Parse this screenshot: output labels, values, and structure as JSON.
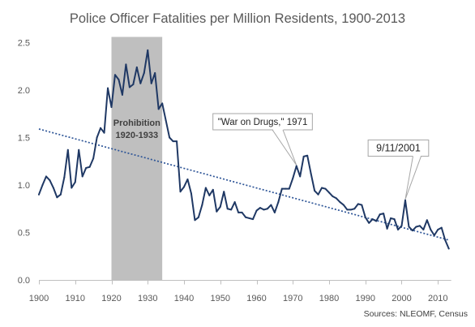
{
  "chart_data": {
    "type": "line",
    "title": "Police Officer Fatalities per Million Residents, 1900-2013",
    "xlabel": "",
    "ylabel": "",
    "source": "Sources: NLEOMF, Census",
    "xlim": [
      1900,
      2013
    ],
    "ylim": [
      0,
      2.5
    ],
    "x_ticks": [
      1900,
      1910,
      1920,
      1930,
      1940,
      1950,
      1960,
      1970,
      1980,
      1990,
      2000,
      2010
    ],
    "y_ticks": [
      0,
      0.5,
      1,
      1.5,
      2,
      2.5
    ],
    "y_tick_labels": [
      "0.0",
      "0.5",
      "1.0",
      "1.5",
      "2.0",
      "2.5"
    ],
    "grid": false,
    "legend": "none",
    "series": [
      {
        "color": "#1F3864",
        "x": [
          1900,
          1901,
          1902,
          1903,
          1904,
          1905,
          1906,
          1907,
          1908,
          1909,
          1910,
          1911,
          1912,
          1913,
          1914,
          1915,
          1916,
          1917,
          1918,
          1919,
          1920,
          1921,
          1922,
          1923,
          1924,
          1925,
          1926,
          1927,
          1928,
          1929,
          1930,
          1931,
          1932,
          1933,
          1934,
          1935,
          1936,
          1937,
          1938,
          1939,
          1940,
          1941,
          1942,
          1943,
          1944,
          1945,
          1946,
          1947,
          1948,
          1949,
          1950,
          1951,
          1952,
          1953,
          1954,
          1955,
          1956,
          1957,
          1958,
          1959,
          1960,
          1961,
          1962,
          1963,
          1964,
          1965,
          1966,
          1967,
          1968,
          1969,
          1970,
          1971,
          1972,
          1973,
          1974,
          1975,
          1976,
          1977,
          1978,
          1979,
          1980,
          1981,
          1982,
          1983,
          1984,
          1985,
          1986,
          1987,
          1988,
          1989,
          1990,
          1991,
          1992,
          1993,
          1994,
          1995,
          1996,
          1997,
          1998,
          1999,
          2000,
          2001,
          2002,
          2003,
          2004,
          2005,
          2006,
          2007,
          2008,
          2009,
          2010,
          2011,
          2012,
          2013
        ],
        "values": [
          0.9,
          1.0,
          1.09,
          1.05,
          0.97,
          0.87,
          0.9,
          1.08,
          1.37,
          0.97,
          1.03,
          1.37,
          1.09,
          1.18,
          1.19,
          1.28,
          1.5,
          1.6,
          1.55,
          2.02,
          1.82,
          2.16,
          2.11,
          1.95,
          2.27,
          2.03,
          2.06,
          2.24,
          2.07,
          2.18,
          2.42,
          2.07,
          2.18,
          1.8,
          1.86,
          1.68,
          1.5,
          1.46,
          1.46,
          0.93,
          0.98,
          1.06,
          0.91,
          0.63,
          0.66,
          0.79,
          0.97,
          0.89,
          0.95,
          0.72,
          0.77,
          0.93,
          0.75,
          0.74,
          0.82,
          0.71,
          0.71,
          0.66,
          0.65,
          0.64,
          0.73,
          0.76,
          0.74,
          0.75,
          0.79,
          0.71,
          0.82,
          0.96,
          0.96,
          0.96,
          1.07,
          1.2,
          1.09,
          1.3,
          1.31,
          1.12,
          0.94,
          0.9,
          0.97,
          0.96,
          0.92,
          0.88,
          0.86,
          0.82,
          0.79,
          0.74,
          0.74,
          0.75,
          0.8,
          0.79,
          0.66,
          0.6,
          0.64,
          0.62,
          0.69,
          0.7,
          0.54,
          0.65,
          0.64,
          0.53,
          0.57,
          0.84,
          0.56,
          0.52,
          0.56,
          0.57,
          0.53,
          0.63,
          0.53,
          0.47,
          0.53,
          0.55,
          0.42,
          0.33
        ]
      }
    ],
    "trendline": {
      "x": [
        1900,
        2013
      ],
      "y": [
        1.59,
        0.42
      ],
      "color": "#2E5597"
    },
    "shaded_regions": [
      {
        "x_start": 1920,
        "x_end": 1934,
        "label_lines": [
          "Prohibition",
          "1920-1933"
        ],
        "color": "#BFBFBF"
      }
    ],
    "annotations": [
      {
        "text": "\"War on Drugs,\" 1971",
        "x": 1971,
        "y": 1.2
      },
      {
        "text": "9/11/2001",
        "x": 2001,
        "y": 0.84
      }
    ],
    "colors": {
      "text": "#595959",
      "axis": "#BFBFBF",
      "band_label": "#404040",
      "callout_border": "#A6A6A6",
      "callout_fill": "#FFFFFF"
    }
  }
}
